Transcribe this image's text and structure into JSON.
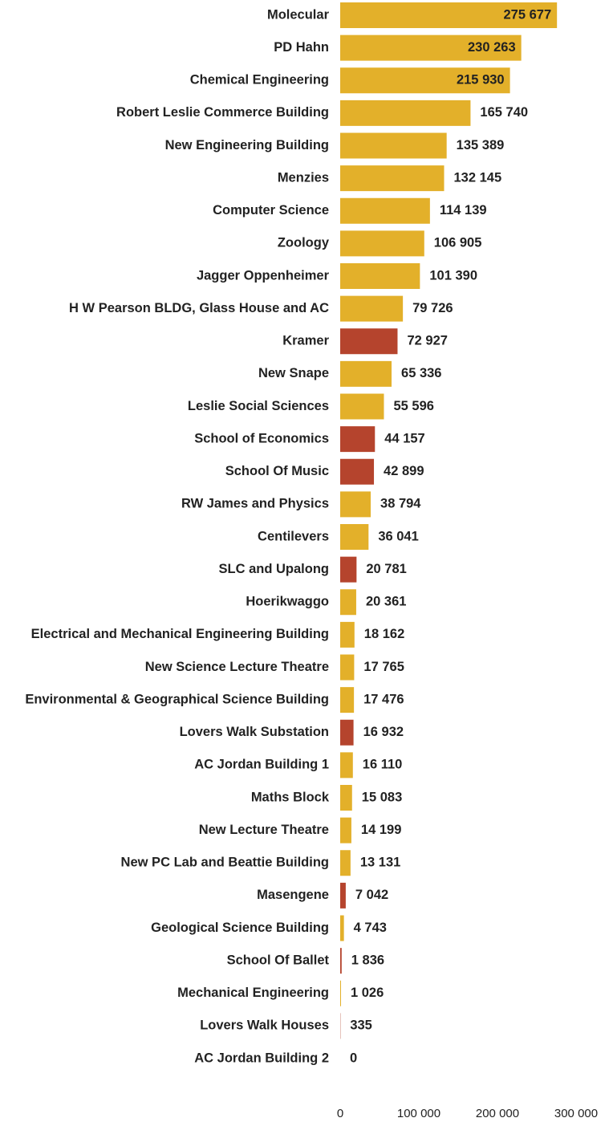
{
  "chart_data": {
    "type": "bar",
    "orientation": "horizontal",
    "categories": [
      "Molecular",
      "PD Hahn",
      "Chemical Engineering",
      "Robert Leslie Commerce Building",
      "New Engineering Building",
      "Menzies",
      "Computer Science",
      "Zoology",
      "Jagger Oppenheimer",
      "H W Pearson BLDG, Glass House and AC",
      "Kramer",
      "New Snape",
      "Leslie Social Sciences",
      "School of Economics",
      "School Of Music",
      "RW James and Physics",
      "Centilevers",
      "SLC and Upalong",
      "Hoerikwaggo",
      "Electrical and Mechanical Engineering Building",
      "New Science Lecture Theatre",
      "Environmental & Geographical Science Building",
      "Lovers Walk Substation",
      "AC Jordan Building 1",
      "Maths Block",
      "New Lecture Theatre",
      "New PC Lab and Beattie Building",
      "Masengene",
      "Geological Science Building",
      "School Of Ballet",
      "Mechanical Engineering",
      "Lovers Walk Houses",
      "AC Jordan Building 2"
    ],
    "values": [
      275677,
      230263,
      215930,
      165740,
      135389,
      132145,
      114139,
      106905,
      101390,
      79726,
      72927,
      65336,
      55596,
      44157,
      42899,
      38794,
      36041,
      20781,
      20361,
      18162,
      17765,
      17476,
      16932,
      16110,
      15083,
      14199,
      13131,
      7042,
      4743,
      1836,
      1026,
      335,
      0
    ],
    "value_labels": [
      "275 677",
      "230 263",
      "215 930",
      "165 740",
      "135 389",
      "132 145",
      "114 139",
      "106 905",
      "101 390",
      "79 726",
      "72 927",
      "65 336",
      "55 596",
      "44 157",
      "42 899",
      "38 794",
      "36 041",
      "20 781",
      "20 361",
      "18 162",
      "17 765",
      "17 476",
      "16 932",
      "16 110",
      "15 083",
      "14 199",
      "13 131",
      "7 042",
      "4 743",
      "1 836",
      "1 026",
      "335",
      "0"
    ],
    "colors": [
      "#e3b02a",
      "#e3b02a",
      "#e3b02a",
      "#e3b02a",
      "#e3b02a",
      "#e3b02a",
      "#e3b02a",
      "#e3b02a",
      "#e3b02a",
      "#e3b02a",
      "#b5442d",
      "#e3b02a",
      "#e3b02a",
      "#b5442d",
      "#b5442d",
      "#e3b02a",
      "#e3b02a",
      "#b5442d",
      "#e3b02a",
      "#e3b02a",
      "#e3b02a",
      "#e3b02a",
      "#b5442d",
      "#e3b02a",
      "#e3b02a",
      "#e3b02a",
      "#e3b02a",
      "#b5442d",
      "#e3b02a",
      "#b5442d",
      "#e3b02a",
      "#b5442d",
      "#e3b02a"
    ],
    "xlim": [
      0,
      300000
    ],
    "xticks": [
      0,
      {
        "value": 100000,
        "label": "100 000"
      },
      {
        "value": 200000,
        "label": "200 000"
      },
      {
        "value": 300000,
        "label": "300 000"
      }
    ]
  }
}
